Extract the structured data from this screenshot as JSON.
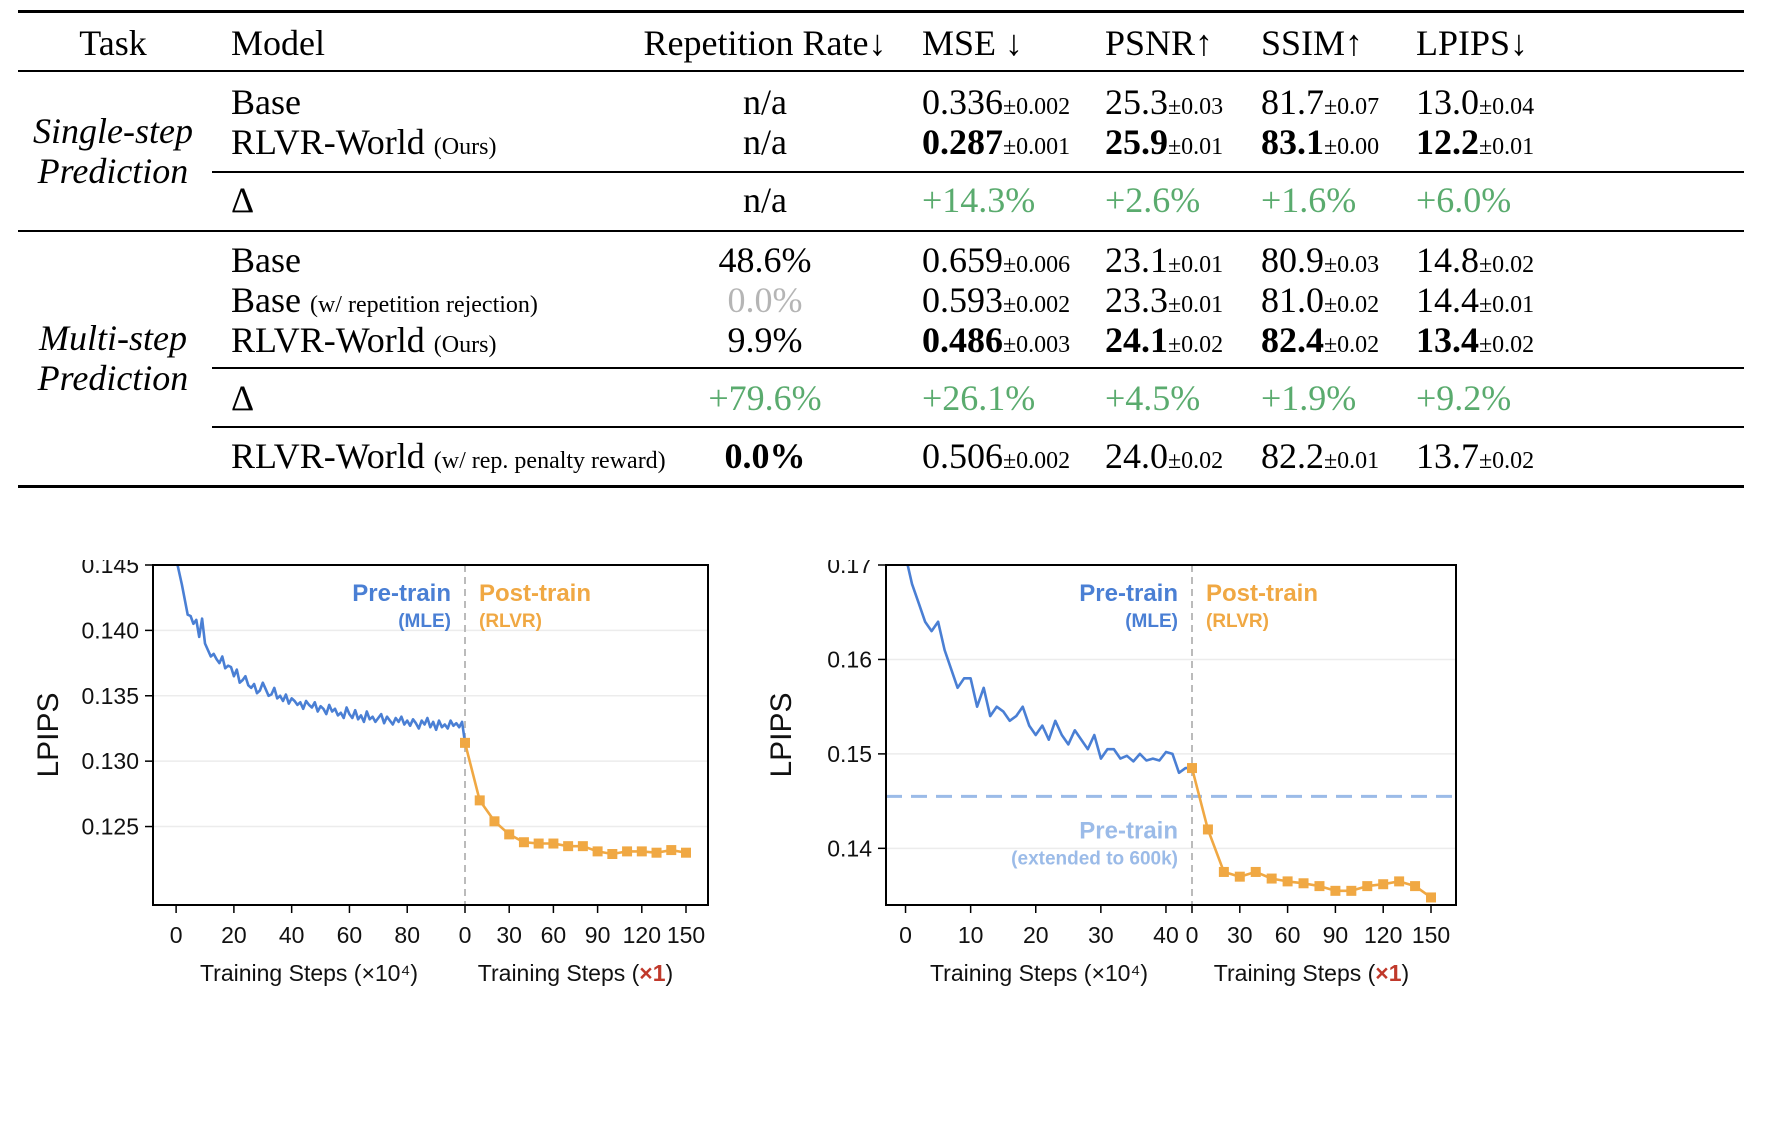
{
  "table": {
    "headers": {
      "task": "Task",
      "model": "Model",
      "rep": "Repetition Rate↓",
      "mse": "MSE ↓",
      "psnr": "PSNR↑",
      "ssim": "SSIM↑",
      "lpips": "LPIPS↓"
    },
    "single": {
      "task_line1": "Single-step",
      "task_line2": "Prediction",
      "rows": [
        {
          "model": "Base",
          "model_suffix": "",
          "rep": "n/a",
          "mse": "0.336",
          "mse_sd": "±0.002",
          "psnr": "25.3",
          "psnr_sd": "±0.03",
          "ssim": "81.7",
          "ssim_sd": "±0.07",
          "lpips": "13.0",
          "lpips_sd": "±0.04"
        },
        {
          "model": "RLVR-World",
          "model_suffix": "(Ours)",
          "rep": "n/a",
          "mse": "0.287",
          "mse_sd": "±0.001",
          "psnr": "25.9",
          "psnr_sd": "±0.01",
          "ssim": "83.1",
          "ssim_sd": "±0.00",
          "lpips": "12.2",
          "lpips_sd": "±0.01"
        }
      ],
      "delta": {
        "label": "Δ",
        "rep": "n/a",
        "mse": "+14.3%",
        "psnr": "+2.6%",
        "ssim": "+1.6%",
        "lpips": "+6.0%"
      }
    },
    "multi": {
      "task_line1": "Multi-step",
      "task_line2": "Prediction",
      "rows": [
        {
          "model": "Base",
          "model_suffix": "",
          "rep": "48.6%",
          "mse": "0.659",
          "mse_sd": "±0.006",
          "psnr": "23.1",
          "psnr_sd": "±0.01",
          "ssim": "80.9",
          "ssim_sd": "±0.03",
          "lpips": "14.8",
          "lpips_sd": "±0.02"
        },
        {
          "model": "Base",
          "model_suffix": "(w/ repetition rejection)",
          "rep": "0.0%",
          "mse": "0.593",
          "mse_sd": "±0.002",
          "psnr": "23.3",
          "psnr_sd": "±0.01",
          "ssim": "81.0",
          "ssim_sd": "±0.02",
          "lpips": "14.4",
          "lpips_sd": "±0.01"
        },
        {
          "model": "RLVR-World",
          "model_suffix": "(Ours)",
          "rep": "9.9%",
          "mse": "0.486",
          "mse_sd": "±0.003",
          "psnr": "24.1",
          "psnr_sd": "±0.02",
          "ssim": "82.4",
          "ssim_sd": "±0.02",
          "lpips": "13.4",
          "lpips_sd": "±0.02"
        }
      ],
      "delta": {
        "label": "Δ",
        "rep": "+79.6%",
        "mse": "+26.1%",
        "psnr": "+4.5%",
        "ssim": "+1.9%",
        "lpips": "+9.2%"
      },
      "extra": {
        "model": "RLVR-World",
        "model_suffix": "(w/ rep. penalty reward)",
        "rep": "0.0%",
        "mse": "0.506",
        "mse_sd": "±0.002",
        "psnr": "24.0",
        "psnr_sd": "±0.02",
        "ssim": "82.2",
        "ssim_sd": "±0.01",
        "lpips": "13.7",
        "lpips_sd": "±0.02"
      }
    },
    "colors": {
      "delta_green": "#5aab6e",
      "disabled_grey": "#b5b5b5"
    }
  },
  "chart_data": [
    {
      "type": "line",
      "title": "Single-Step Prediction",
      "ylabel": "LPIPS",
      "ylim": [
        0.119,
        0.145
      ],
      "yticks": [
        "0.145",
        "0.140",
        "0.135",
        "0.130",
        "0.125"
      ],
      "pretrain": {
        "xlabel": "Training Steps (×10⁴)",
        "xticks": [
          "0",
          "20",
          "40",
          "60",
          "80"
        ],
        "xlim": [
          -8,
          100
        ],
        "label": "Pre-train",
        "sublabel": "(MLE)",
        "color": "#4a7fd4",
        "x": [
          0,
          2,
          4,
          5,
          6,
          7,
          8,
          9,
          10,
          11,
          12,
          13,
          14,
          15,
          16,
          17,
          18,
          19,
          20,
          21,
          22,
          23,
          24,
          25,
          26,
          27,
          28,
          29,
          30,
          31,
          32,
          33,
          34,
          35,
          36,
          37,
          38,
          39,
          40,
          41,
          42,
          43,
          44,
          45,
          46,
          47,
          48,
          49,
          50,
          51,
          52,
          53,
          54,
          55,
          56,
          57,
          58,
          59,
          60,
          61,
          62,
          63,
          64,
          65,
          66,
          67,
          68,
          69,
          70,
          71,
          72,
          73,
          74,
          75,
          76,
          77,
          78,
          79,
          80,
          81,
          82,
          83,
          84,
          85,
          86,
          87,
          88,
          89,
          90,
          91,
          92,
          93,
          94,
          95,
          96,
          97,
          98,
          99,
          100
        ],
        "y": [
          0.1455,
          0.1435,
          0.1412,
          0.1411,
          0.1405,
          0.1408,
          0.1395,
          0.1409,
          0.139,
          0.1385,
          0.138,
          0.1382,
          0.1378,
          0.1375,
          0.138,
          0.1371,
          0.1373,
          0.1372,
          0.1365,
          0.137,
          0.136,
          0.1362,
          0.1365,
          0.1358,
          0.1356,
          0.1359,
          0.1352,
          0.1354,
          0.136,
          0.1355,
          0.135,
          0.1351,
          0.1356,
          0.1348,
          0.135,
          0.1346,
          0.1351,
          0.1344,
          0.1348,
          0.1346,
          0.1343,
          0.1345,
          0.134,
          0.1346,
          0.1343,
          0.1341,
          0.1345,
          0.1338,
          0.1342,
          0.134,
          0.1336,
          0.1343,
          0.1338,
          0.134,
          0.1335,
          0.1337,
          0.1333,
          0.1341,
          0.1336,
          0.1333,
          0.1339,
          0.1332,
          0.1335,
          0.133,
          0.1338,
          0.1332,
          0.1334,
          0.133,
          0.1333,
          0.1336,
          0.1329,
          0.1334,
          0.1331,
          0.1328,
          0.1333,
          0.133,
          0.1334,
          0.1328,
          0.1331,
          0.1327,
          0.1332,
          0.1329,
          0.1325,
          0.1331,
          0.1328,
          0.1333,
          0.1326,
          0.133,
          0.1324,
          0.1331,
          0.1326,
          0.1328,
          0.1325,
          0.1331,
          0.1327,
          0.1329,
          0.1326,
          0.133,
          0.1314
        ]
      },
      "posttrain": {
        "xlabel": "Training Steps (×1)",
        "xticks": [
          "0",
          "30",
          "60",
          "90",
          "120",
          "150"
        ],
        "xlim": [
          0,
          150
        ],
        "label": "Post-train",
        "sublabel": "(RLVR)",
        "color": "#f0a843",
        "x": [
          0,
          10,
          20,
          30,
          40,
          50,
          60,
          70,
          80,
          90,
          100,
          110,
          120,
          130,
          140,
          150
        ],
        "y": [
          0.1314,
          0.127,
          0.1254,
          0.1244,
          0.1238,
          0.1237,
          0.1237,
          0.1235,
          0.1235,
          0.1231,
          0.1229,
          0.1231,
          0.1231,
          0.123,
          0.1232,
          0.123
        ]
      }
    },
    {
      "type": "line",
      "title": "Multi-Step Prediction",
      "ylabel": "LPIPS",
      "ylim": [
        0.134,
        0.17
      ],
      "yticks": [
        "0.17",
        "0.16",
        "0.15",
        "0.14"
      ],
      "pretrain": {
        "xlabel": "Training Steps (×10⁴)",
        "xticks": [
          "0",
          "10",
          "20",
          "30",
          "40"
        ],
        "xlim": [
          -3,
          44
        ],
        "label": "Pre-train",
        "sublabel": "(MLE)",
        "color": "#4a7fd4",
        "x": [
          0,
          1,
          2,
          3,
          4,
          5,
          6,
          7,
          8,
          9,
          10,
          11,
          12,
          13,
          14,
          15,
          16,
          17,
          18,
          19,
          20,
          21,
          22,
          23,
          24,
          25,
          26,
          27,
          28,
          29,
          30,
          31,
          32,
          33,
          34,
          35,
          36,
          37,
          38,
          39,
          40,
          41,
          42,
          43,
          44
        ],
        "y": [
          0.171,
          0.168,
          0.166,
          0.164,
          0.163,
          0.164,
          0.161,
          0.159,
          0.157,
          0.158,
          0.158,
          0.155,
          0.157,
          0.154,
          0.155,
          0.1545,
          0.1535,
          0.154,
          0.155,
          0.153,
          0.152,
          0.153,
          0.1515,
          0.1535,
          0.152,
          0.151,
          0.1525,
          0.1515,
          0.1505,
          0.152,
          0.1495,
          0.1505,
          0.1505,
          0.1495,
          0.1498,
          0.1492,
          0.15,
          0.1493,
          0.1495,
          0.1493,
          0.1502,
          0.15,
          0.148,
          0.1485,
          0.1485
        ]
      },
      "posttrain": {
        "xlabel": "Training Steps (×1)",
        "xticks": [
          "0",
          "30",
          "60",
          "90",
          "120",
          "150"
        ],
        "xlim": [
          0,
          150
        ],
        "label": "Post-train",
        "sublabel": "(RLVR)",
        "color": "#f0a843",
        "x": [
          0,
          10,
          20,
          30,
          40,
          50,
          60,
          70,
          80,
          90,
          100,
          110,
          120,
          130,
          140,
          150
        ],
        "y": [
          0.1485,
          0.142,
          0.1375,
          0.137,
          0.1375,
          0.1368,
          0.1365,
          0.1363,
          0.136,
          0.1355,
          0.1355,
          0.136,
          0.1362,
          0.1365,
          0.136,
          0.1348
        ]
      },
      "reference": {
        "value": 0.1455,
        "label": "Pre-train",
        "sublabel": "(extended to 600k)",
        "color": "#9bbbe8"
      }
    }
  ]
}
